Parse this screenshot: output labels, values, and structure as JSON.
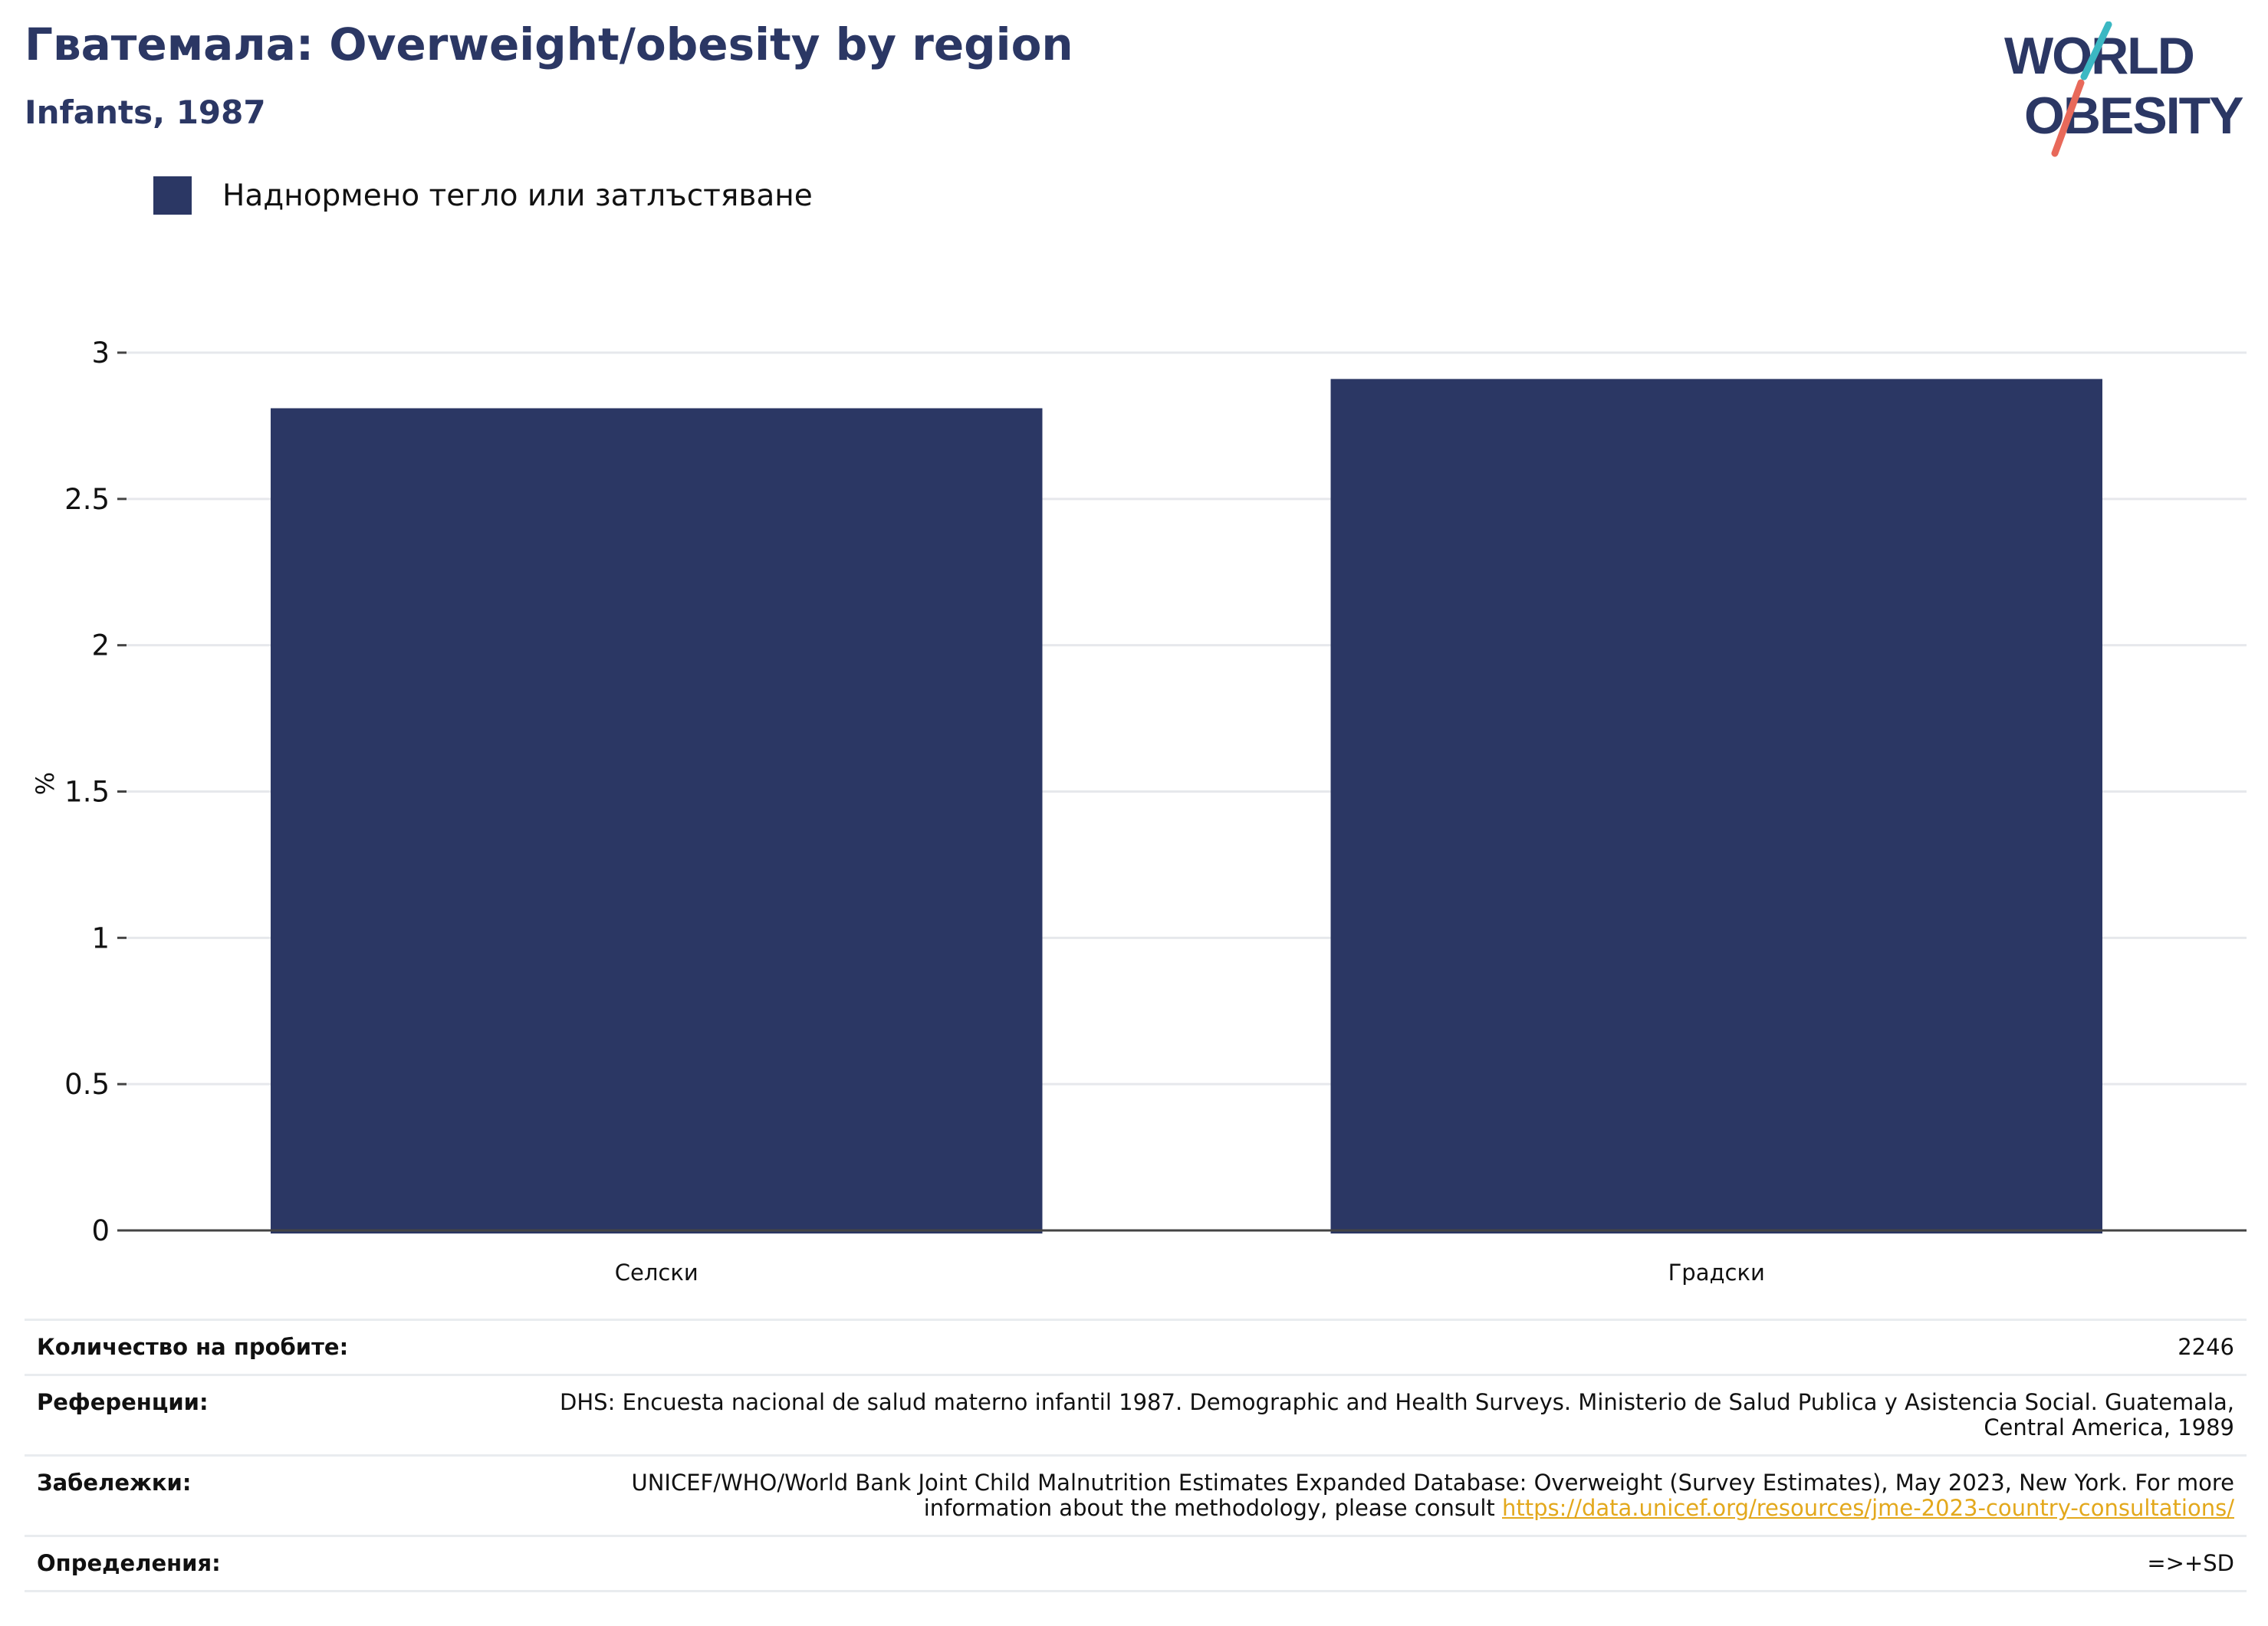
{
  "header": {
    "title": "Гватемала: Overweight/obesity by region",
    "subtitle": "Infants, 1987"
  },
  "logo": {
    "line1": "WORLD",
    "line2": "OBESITY",
    "colors": {
      "text": "#2b3764",
      "slash_top": "#3bb8c3",
      "slash_bottom": "#e8695a"
    }
  },
  "legend": {
    "label": "Наднормено тегло или затлъстяване",
    "color": "#2b3764"
  },
  "chart_data": {
    "type": "bar",
    "title": "Гватемала: Overweight/obesity by region",
    "subtitle": "Infants, 1987",
    "categories": [
      "Селски",
      "Градски"
    ],
    "series": [
      {
        "name": "Наднормено тегло или затлъстяване",
        "values": [
          2.81,
          2.91
        ],
        "color": "#2b3764"
      }
    ],
    "ylabel": "%",
    "xlabel": "",
    "ylim": [
      0,
      3
    ],
    "yticks": [
      0,
      0.5,
      1,
      1.5,
      2,
      2.5,
      3
    ],
    "ytick_labels": [
      "0",
      "0.5",
      "1",
      "1.5",
      "2",
      "2.5",
      "3"
    ],
    "grid": true,
    "legend_position": "top-left"
  },
  "footer": {
    "rows": [
      {
        "label": "Количество на пробите:",
        "value": "2246"
      },
      {
        "label": "Референции:",
        "value": "DHS: Encuesta nacional de salud materno infantil 1987. Demographic and Health Surveys. Ministerio de Salud Publica y Asistencia Social. Guatemala, Central America, 1989"
      },
      {
        "label": "Забележки:",
        "value": "UNICEF/WHO/World Bank Joint Child Malnutrition Estimates Expanded Database: Overweight (Survey Estimates), May 2023, New York. For more information about the methodology, please consult ",
        "link": "https://data.unicef.org/resources/jme-2023-country-consultations/"
      },
      {
        "label": "Определения:",
        "value": "=>+SD"
      }
    ]
  }
}
